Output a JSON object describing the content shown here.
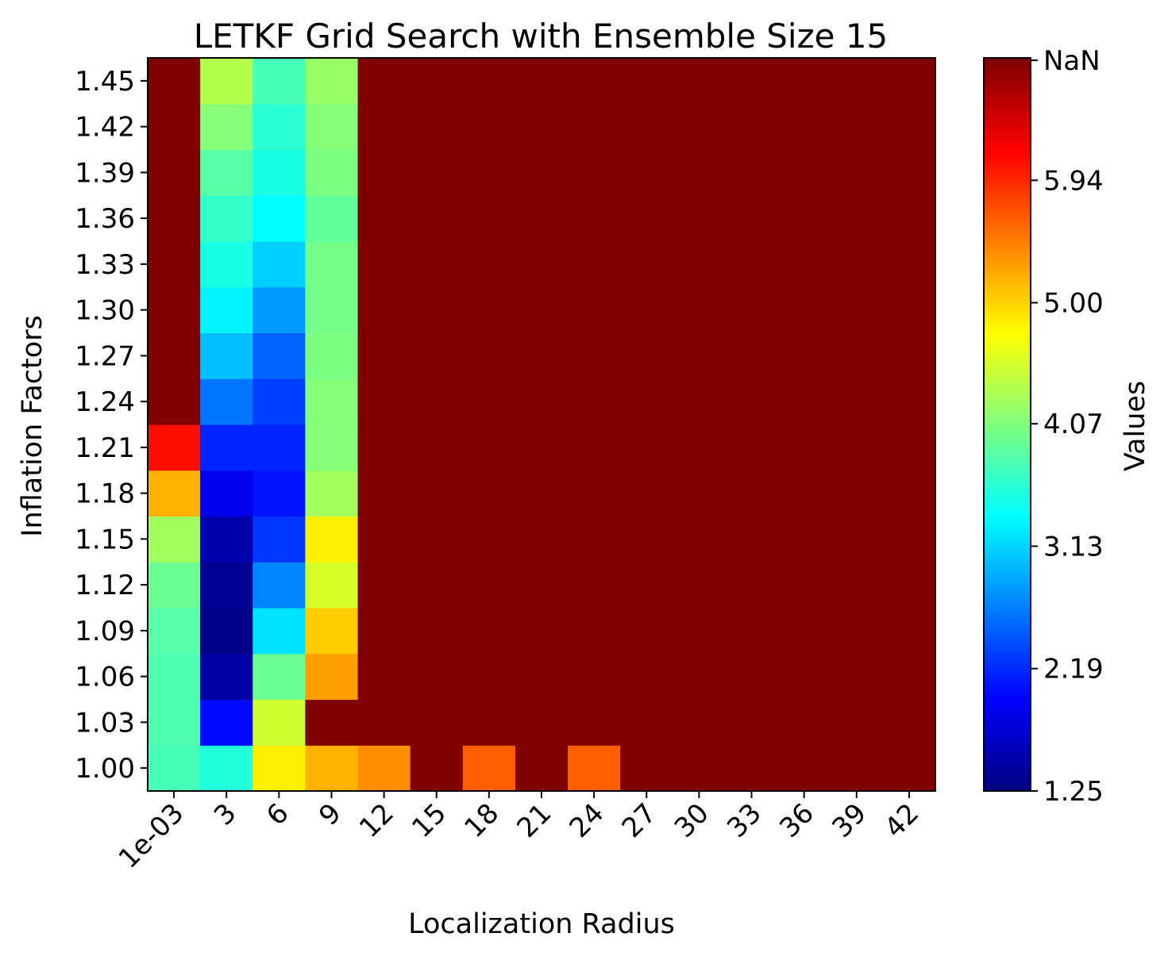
{
  "chart_data": {
    "type": "heatmap",
    "title": "LETKF Grid Search with Ensemble Size 15",
    "xlabel": "Localization Radius",
    "ylabel": "Inflation Factors",
    "x_categories": [
      "1e-03",
      "3",
      "6",
      "9",
      "12",
      "15",
      "18",
      "21",
      "24",
      "27",
      "30",
      "33",
      "36",
      "39",
      "42"
    ],
    "y_categories": [
      "1.00",
      "1.03",
      "1.06",
      "1.09",
      "1.12",
      "1.15",
      "1.18",
      "1.21",
      "1.24",
      "1.27",
      "1.30",
      "1.33",
      "1.36",
      "1.39",
      "1.42",
      "1.45"
    ],
    "values": [
      [
        3.75,
        3.55,
        4.85,
        5.2,
        5.4,
        null,
        5.65,
        null,
        5.65,
        null,
        null,
        null,
        null,
        null,
        null
      ],
      [
        3.8,
        2.0,
        4.5,
        null,
        null,
        null,
        null,
        null,
        null,
        null,
        null,
        null,
        null,
        null,
        null
      ],
      [
        3.8,
        1.45,
        3.95,
        5.3,
        null,
        null,
        null,
        null,
        null,
        null,
        null,
        null,
        null,
        null,
        null
      ],
      [
        3.85,
        1.3,
        3.2,
        5.05,
        null,
        null,
        null,
        null,
        null,
        null,
        null,
        null,
        null,
        null,
        null
      ],
      [
        3.95,
        1.35,
        2.7,
        4.55,
        null,
        null,
        null,
        null,
        null,
        null,
        null,
        null,
        null,
        null,
        null
      ],
      [
        4.25,
        1.5,
        2.25,
        4.85,
        null,
        null,
        null,
        null,
        null,
        null,
        null,
        null,
        null,
        null,
        null
      ],
      [
        5.2,
        1.85,
        2.05,
        4.25,
        null,
        null,
        null,
        null,
        null,
        null,
        null,
        null,
        null,
        null,
        null
      ],
      [
        6.1,
        2.15,
        2.15,
        4.1,
        null,
        null,
        null,
        null,
        null,
        null,
        null,
        null,
        null,
        null,
        null
      ],
      [
        null,
        2.6,
        2.3,
        4.1,
        null,
        null,
        null,
        null,
        null,
        null,
        null,
        null,
        null,
        null,
        null
      ],
      [
        null,
        3.0,
        2.5,
        4.05,
        null,
        null,
        null,
        null,
        null,
        null,
        null,
        null,
        null,
        null,
        null
      ],
      [
        null,
        3.3,
        2.8,
        4.0,
        null,
        null,
        null,
        null,
        null,
        null,
        null,
        null,
        null,
        null,
        null
      ],
      [
        null,
        3.5,
        3.1,
        4.0,
        null,
        null,
        null,
        null,
        null,
        null,
        null,
        null,
        null,
        null,
        null
      ],
      [
        null,
        3.65,
        3.35,
        3.9,
        null,
        null,
        null,
        null,
        null,
        null,
        null,
        null,
        null,
        null,
        null
      ],
      [
        null,
        3.85,
        3.5,
        4.05,
        null,
        null,
        null,
        null,
        null,
        null,
        null,
        null,
        null,
        null,
        null
      ],
      [
        null,
        4.1,
        3.6,
        4.1,
        null,
        null,
        null,
        null,
        null,
        null,
        null,
        null,
        null,
        null,
        null
      ],
      [
        null,
        4.35,
        3.75,
        4.2,
        null,
        null,
        null,
        null,
        null,
        null,
        null,
        null,
        null,
        null,
        null
      ]
    ],
    "missing_label": "NaN",
    "colormap": "jet",
    "vmin": 1.25,
    "vmax": 6.88,
    "colorbar": {
      "label": "Values",
      "ticks": [
        1.25,
        2.19,
        3.13,
        4.07,
        5.0,
        5.94
      ],
      "tick_labels": [
        "1.25",
        "2.19",
        "3.13",
        "4.07",
        "5.00",
        "5.94"
      ],
      "top_label": "NaN"
    },
    "grid": false
  }
}
